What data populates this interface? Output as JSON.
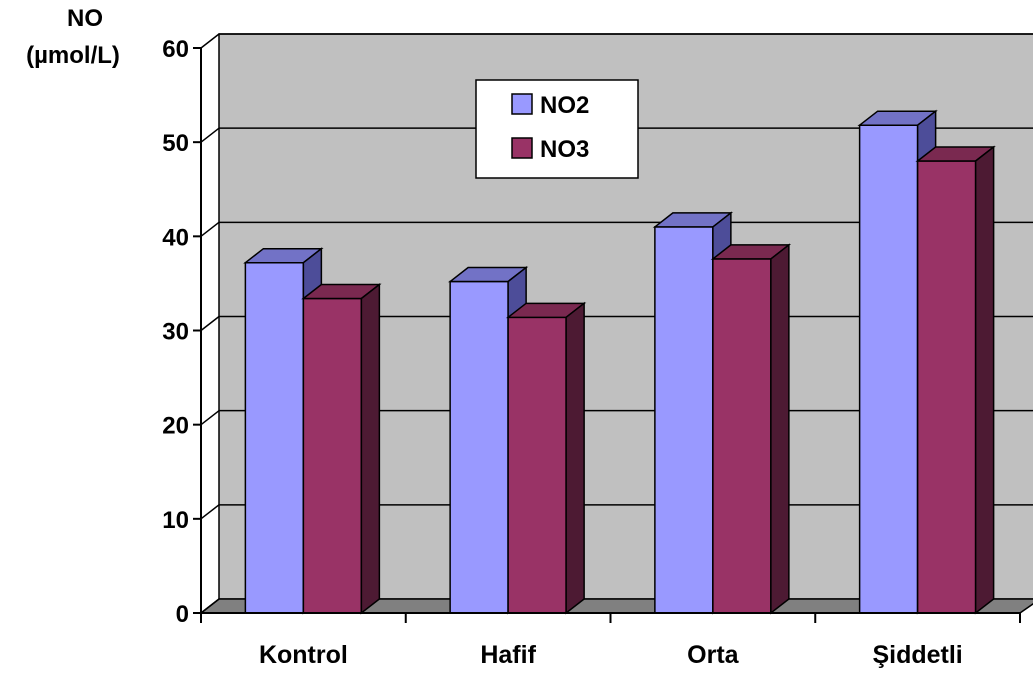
{
  "chart_data": {
    "type": "bar",
    "ylabel_line1": "NO",
    "ylabel_line2": "(µmol/L)",
    "categories": [
      "Kontrol",
      "Hafif",
      "Orta",
      "Şiddetli"
    ],
    "series": [
      {
        "name": "NO2",
        "values": [
          37.2,
          35.2,
          41.0,
          51.8
        ]
      },
      {
        "name": "NO3",
        "values": [
          33.4,
          31.4,
          37.6,
          48.0
        ]
      }
    ],
    "ylim": [
      0,
      60
    ],
    "yticks": [
      0,
      10,
      20,
      30,
      40,
      50,
      60
    ],
    "grid": true,
    "legend": "top-center",
    "colors": {
      "NO2_front": "#9999ff",
      "NO2_top": "#7272c6",
      "NO2_side": "#4d4d99",
      "NO3_front": "#993366",
      "NO3_top": "#7a2950",
      "NO3_side": "#4d1a33",
      "plot_wall": "#c0c0c0",
      "plot_floor": "#808080"
    }
  }
}
